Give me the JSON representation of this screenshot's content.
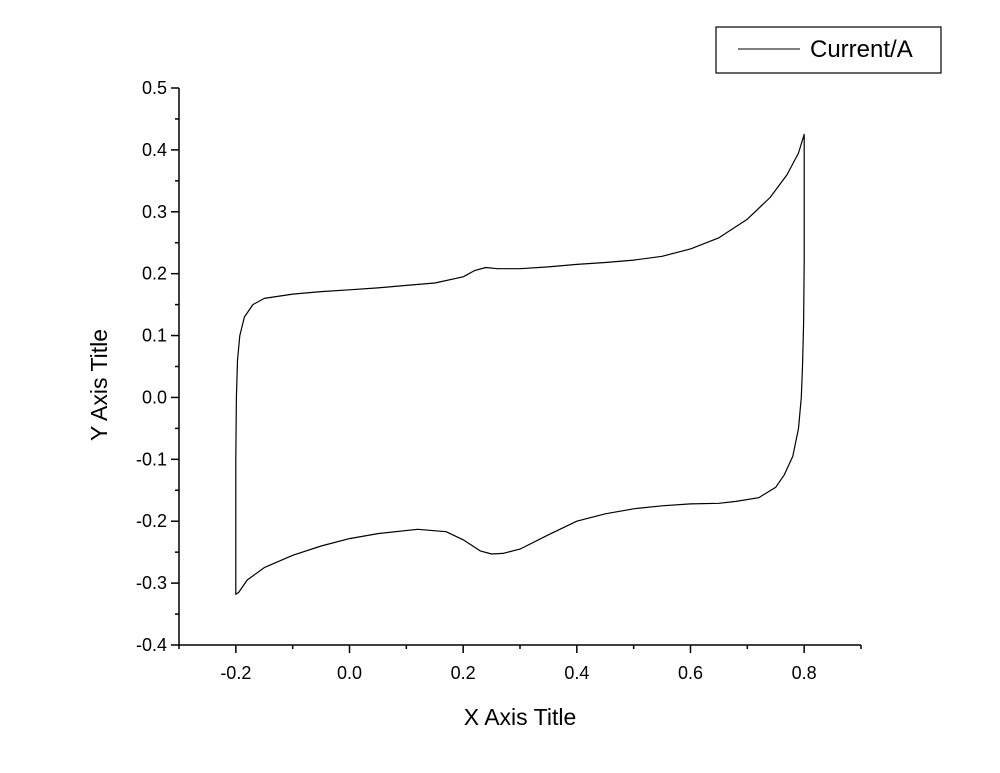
{
  "chart_data": {
    "type": "line",
    "xlabel": "X Axis Title",
    "ylabel": "Y Axis Title",
    "xlim": [
      -0.3,
      0.9
    ],
    "ylim": [
      -0.4,
      0.5
    ],
    "x_ticks": [
      -0.2,
      0.0,
      0.2,
      0.4,
      0.6,
      0.8
    ],
    "x_tick_labels": [
      "-0.2",
      "0.0",
      "0.2",
      "0.4",
      "0.6",
      "0.8"
    ],
    "y_ticks": [
      -0.4,
      -0.3,
      -0.2,
      -0.1,
      0.0,
      0.1,
      0.2,
      0.3,
      0.4,
      0.5
    ],
    "y_tick_labels": [
      "-0.4",
      "-0.3",
      "-0.2",
      "-0.1",
      "0.0",
      "0.1",
      "0.2",
      "0.3",
      "0.4",
      "0.5"
    ],
    "grid": false,
    "legend_position": "top-right",
    "series": [
      {
        "name": "Current/A",
        "color": "#000000",
        "points": [
          [
            -0.2,
            -0.21
          ],
          [
            -0.2,
            -0.1
          ],
          [
            -0.199,
            0.0
          ],
          [
            -0.197,
            0.06
          ],
          [
            -0.193,
            0.1
          ],
          [
            -0.185,
            0.13
          ],
          [
            -0.17,
            0.15
          ],
          [
            -0.15,
            0.16
          ],
          [
            -0.1,
            0.167
          ],
          [
            -0.05,
            0.171
          ],
          [
            0.0,
            0.174
          ],
          [
            0.05,
            0.177
          ],
          [
            0.1,
            0.181
          ],
          [
            0.15,
            0.185
          ],
          [
            0.2,
            0.195
          ],
          [
            0.22,
            0.205
          ],
          [
            0.24,
            0.21
          ],
          [
            0.26,
            0.208
          ],
          [
            0.3,
            0.208
          ],
          [
            0.35,
            0.211
          ],
          [
            0.4,
            0.215
          ],
          [
            0.45,
            0.218
          ],
          [
            0.5,
            0.222
          ],
          [
            0.55,
            0.228
          ],
          [
            0.6,
            0.24
          ],
          [
            0.65,
            0.258
          ],
          [
            0.7,
            0.288
          ],
          [
            0.74,
            0.323
          ],
          [
            0.77,
            0.36
          ],
          [
            0.79,
            0.395
          ],
          [
            0.8,
            0.425
          ],
          [
            0.8,
            0.3
          ],
          [
            0.8,
            0.22
          ],
          [
            0.799,
            0.12
          ],
          [
            0.797,
            0.05
          ],
          [
            0.795,
            0.0
          ],
          [
            0.79,
            -0.05
          ],
          [
            0.78,
            -0.095
          ],
          [
            0.765,
            -0.125
          ],
          [
            0.75,
            -0.145
          ],
          [
            0.72,
            -0.162
          ],
          [
            0.68,
            -0.168
          ],
          [
            0.65,
            -0.171
          ],
          [
            0.6,
            -0.172
          ],
          [
            0.55,
            -0.175
          ],
          [
            0.5,
            -0.18
          ],
          [
            0.45,
            -0.188
          ],
          [
            0.4,
            -0.2
          ],
          [
            0.35,
            -0.222
          ],
          [
            0.3,
            -0.245
          ],
          [
            0.27,
            -0.252
          ],
          [
            0.25,
            -0.253
          ],
          [
            0.23,
            -0.248
          ],
          [
            0.2,
            -0.23
          ],
          [
            0.17,
            -0.217
          ],
          [
            0.12,
            -0.213
          ],
          [
            0.05,
            -0.22
          ],
          [
            0.0,
            -0.228
          ],
          [
            -0.05,
            -0.24
          ],
          [
            -0.1,
            -0.255
          ],
          [
            -0.15,
            -0.275
          ],
          [
            -0.18,
            -0.295
          ],
          [
            -0.195,
            -0.315
          ],
          [
            -0.2,
            -0.318
          ],
          [
            -0.2,
            -0.25
          ],
          [
            -0.2,
            -0.21
          ]
        ]
      }
    ]
  }
}
